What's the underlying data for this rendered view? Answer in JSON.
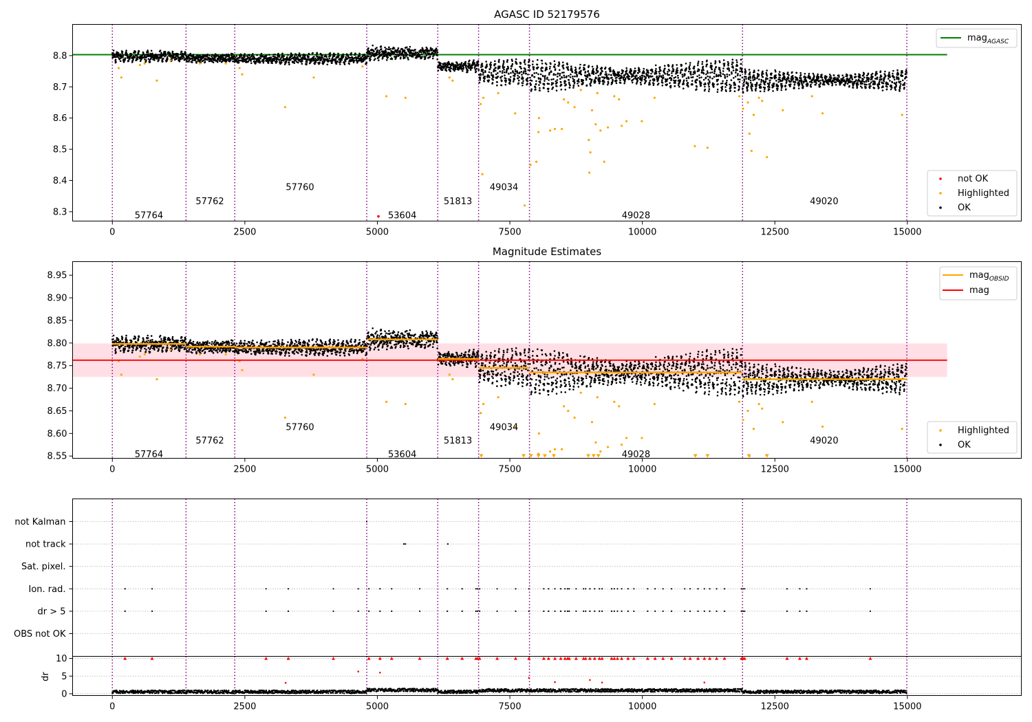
{
  "chart_data": [
    {
      "type": "scatter",
      "title": "AGASC ID 52179576",
      "xlim": [
        -750,
        17150
      ],
      "ylim": [
        8.27,
        8.9
      ],
      "xticks": [
        0,
        2500,
        5000,
        7500,
        10000,
        12500,
        15000
      ],
      "yticks": [
        8.3,
        8.4,
        8.5,
        8.6,
        8.7,
        8.8
      ],
      "ytick_labels": [
        "8.3",
        "8.4",
        "8.5",
        "8.6",
        "8.7",
        "8.8"
      ],
      "mag_agasc": 8.803,
      "line_xrange": [
        -750,
        15750
      ],
      "obs_boundaries": [
        0,
        1390,
        2310,
        4800,
        6140,
        6910,
        7870,
        11890,
        14990
      ],
      "obsid_labels": [
        {
          "text": "57764",
          "x": 690,
          "y": 8.29
        },
        {
          "text": "57762",
          "x": 1840,
          "y": 8.335
        },
        {
          "text": "57760",
          "x": 3540,
          "y": 8.38
        },
        {
          "text": "53604",
          "x": 5470,
          "y": 8.29
        },
        {
          "text": "51813",
          "x": 6520,
          "y": 8.335
        },
        {
          "text": "49034",
          "x": 7390,
          "y": 8.38
        },
        {
          "text": "49028",
          "x": 9880,
          "y": 8.29
        },
        {
          "text": "49020",
          "x": 13430,
          "y": 8.335
        }
      ],
      "segments": [
        {
          "x0": 0,
          "x1": 1390,
          "mean": 8.798,
          "amp": 0.006,
          "spread": 0.012
        },
        {
          "x0": 1390,
          "x1": 2310,
          "mean": 8.792,
          "amp": 0.005,
          "spread": 0.012
        },
        {
          "x0": 2310,
          "x1": 4800,
          "mean": 8.79,
          "amp": 0.005,
          "spread": 0.012
        },
        {
          "x0": 4800,
          "x1": 6140,
          "mean": 8.808,
          "amp": 0.01,
          "spread": 0.016
        },
        {
          "x0": 6140,
          "x1": 6910,
          "mean": 8.765,
          "amp": 0.008,
          "spread": 0.012
        },
        {
          "x0": 6910,
          "x1": 7870,
          "mean": 8.745,
          "amp": 0.02,
          "spread": 0.014
        },
        {
          "x0": 7870,
          "x1": 11890,
          "mean": 8.735,
          "amp": 0.026,
          "spread": 0.014
        },
        {
          "x0": 11890,
          "x1": 14990,
          "mean": 8.72,
          "amp": 0.018,
          "spread": 0.012
        }
      ],
      "highlighted_points": [
        [
          120,
          8.76
        ],
        [
          170,
          8.73
        ],
        [
          520,
          8.77
        ],
        [
          610,
          8.775
        ],
        [
          840,
          8.72
        ],
        [
          1100,
          8.785
        ],
        [
          1650,
          8.775
        ],
        [
          2140,
          8.775
        ],
        [
          2400,
          8.76
        ],
        [
          2450,
          8.74
        ],
        [
          3260,
          8.635
        ],
        [
          3800,
          8.73
        ],
        [
          4720,
          8.765
        ],
        [
          5170,
          8.67
        ],
        [
          5530,
          8.665
        ],
        [
          6360,
          8.73
        ],
        [
          6420,
          8.72
        ],
        [
          6950,
          8.645
        ],
        [
          6980,
          8.42
        ],
        [
          7000,
          8.665
        ],
        [
          7280,
          8.68
        ],
        [
          7600,
          8.615
        ],
        [
          7780,
          8.32
        ],
        [
          7890,
          8.45
        ],
        [
          8000,
          8.46
        ],
        [
          8050,
          8.6
        ],
        [
          8040,
          8.555
        ],
        [
          8260,
          8.56
        ],
        [
          8350,
          8.565
        ],
        [
          8480,
          8.565
        ],
        [
          8520,
          8.66
        ],
        [
          8600,
          8.65
        ],
        [
          8720,
          8.635
        ],
        [
          8840,
          8.69
        ],
        [
          8990,
          8.53
        ],
        [
          9020,
          8.49
        ],
        [
          9000,
          8.425
        ],
        [
          9050,
          8.625
        ],
        [
          9120,
          8.58
        ],
        [
          9150,
          8.68
        ],
        [
          9210,
          8.56
        ],
        [
          9280,
          8.46
        ],
        [
          9350,
          8.57
        ],
        [
          9470,
          8.67
        ],
        [
          9560,
          8.66
        ],
        [
          9610,
          8.575
        ],
        [
          9700,
          8.59
        ],
        [
          9990,
          8.59
        ],
        [
          10230,
          8.665
        ],
        [
          10990,
          8.51
        ],
        [
          11230,
          8.505
        ],
        [
          11830,
          8.67
        ],
        [
          11900,
          8.63
        ],
        [
          11990,
          8.65
        ],
        [
          12020,
          8.55
        ],
        [
          12060,
          8.495
        ],
        [
          12100,
          8.61
        ],
        [
          12200,
          8.665
        ],
        [
          12260,
          8.655
        ],
        [
          12350,
          8.475
        ],
        [
          12650,
          8.625
        ],
        [
          13200,
          8.67
        ],
        [
          13400,
          8.615
        ],
        [
          14900,
          8.61
        ]
      ],
      "not_ok_points": [
        [
          5020,
          8.285
        ]
      ],
      "legend": [
        "mag_AGASC",
        "not OK",
        "Highlighted",
        "OK"
      ]
    },
    {
      "type": "scatter",
      "title": "Magnitude Estimates",
      "xlim": [
        -750,
        17150
      ],
      "ylim": [
        8.545,
        8.98
      ],
      "xticks": [
        0,
        2500,
        5000,
        7500,
        10000,
        12500,
        15000
      ],
      "yticks": [
        8.55,
        8.6,
        8.65,
        8.7,
        8.75,
        8.8,
        8.85,
        8.9,
        8.95
      ],
      "ytick_labels": [
        "8.55",
        "8.60",
        "8.65",
        "8.70",
        "8.75",
        "8.80",
        "8.85",
        "8.90",
        "8.95"
      ],
      "mag": 8.762,
      "mag_band": [
        8.725,
        8.799
      ],
      "line_xrange": [
        -750,
        15750
      ],
      "mag_obsid": [
        8.798,
        8.792,
        8.79,
        8.808,
        8.765,
        8.745,
        8.735,
        8.72
      ],
      "obs_boundaries": [
        0,
        1390,
        2310,
        4800,
        6140,
        6910,
        7870,
        11890,
        14990
      ],
      "obsid_labels": [
        {
          "text": "57764",
          "x": 690,
          "y": 8.555
        },
        {
          "text": "57762",
          "x": 1840,
          "y": 8.585
        },
        {
          "text": "57760",
          "x": 3540,
          "y": 8.615
        },
        {
          "text": "53604",
          "x": 5470,
          "y": 8.555
        },
        {
          "text": "51813",
          "x": 6520,
          "y": 8.585
        },
        {
          "text": "49034",
          "x": 7390,
          "y": 8.615
        },
        {
          "text": "49028",
          "x": 9880,
          "y": 8.555
        },
        {
          "text": "49020",
          "x": 13430,
          "y": 8.585
        }
      ],
      "clipped_points_x": [
        6960,
        7760,
        7900,
        8040,
        8160,
        8330,
        8980,
        9080,
        9170,
        11000,
        11230,
        12010,
        12350
      ],
      "legend": [
        "mag_OBSID",
        "mag",
        "Highlighted",
        "OK"
      ]
    },
    {
      "type": "scatter",
      "xlim": [
        -750,
        17150
      ],
      "xticks": [
        0,
        2500,
        5000,
        7500,
        10000,
        12500,
        15000
      ],
      "flag_rows": [
        "not Kalman",
        "not track",
        "Sat. pixel.",
        "Ion. rad.",
        "dr > 5",
        "OBS not OK"
      ],
      "flag_points": {
        "not Kalman": [
          4800
        ],
        "not track": [
          5500,
          5530,
          6330
        ],
        "Sat. pixel.": [],
        "Ion. rad.": [
          240,
          750,
          2900,
          3320,
          4170,
          4640,
          4840,
          5050,
          5270,
          5800,
          6320,
          6600,
          6860,
          6890,
          6930,
          7260,
          7610,
          7860,
          8140,
          8230,
          8350,
          8460,
          8540,
          8590,
          8620,
          8750,
          8890,
          8930,
          9010,
          9100,
          9190,
          9240,
          9420,
          9470,
          9530,
          9610,
          9730,
          9840,
          10100,
          10240,
          10390,
          10550,
          10800,
          10900,
          11050,
          11170,
          11270,
          11400,
          11550,
          11870,
          11900,
          11930,
          12730,
          12970,
          13100,
          14300
        ],
        "dr > 5": [
          240,
          750,
          2900,
          3320,
          4170,
          4640,
          4840,
          5050,
          5270,
          5800,
          6320,
          6600,
          6860,
          6890,
          6930,
          7260,
          7610,
          7860,
          8140,
          8230,
          8350,
          8460,
          8540,
          8590,
          8620,
          8750,
          8890,
          8930,
          9010,
          9100,
          9190,
          9240,
          9420,
          9470,
          9530,
          9610,
          9730,
          9840,
          10100,
          10240,
          10390,
          10550,
          10800,
          10900,
          11050,
          11170,
          11270,
          11400,
          11550,
          11870,
          11900,
          11930,
          12730,
          12970,
          13100,
          14300
        ],
        "OBS not OK": []
      },
      "obs_boundaries": [
        0,
        1390,
        2310,
        4800,
        6140,
        6910,
        7870,
        11890,
        14990
      ]
    },
    {
      "type": "scatter",
      "ylabel": "dr",
      "xlim": [
        -750,
        17150
      ],
      "ylim": [
        -0.5,
        10.6
      ],
      "xticks": [
        0,
        2500,
        5000,
        7500,
        10000,
        12500,
        15000
      ],
      "yticks": [
        0,
        5,
        10
      ],
      "ytick_labels": [
        "0",
        "5",
        "10"
      ],
      "capped_dr_x": [
        240,
        750,
        2900,
        3320,
        4170,
        4840,
        5050,
        5270,
        5800,
        6320,
        6600,
        6860,
        6890,
        6930,
        7260,
        7610,
        7860,
        8140,
        8230,
        8350,
        8460,
        8540,
        8590,
        8620,
        8750,
        8890,
        8930,
        9010,
        9100,
        9190,
        9240,
        9420,
        9470,
        9530,
        9610,
        9730,
        9840,
        10100,
        10240,
        10390,
        10550,
        10800,
        10900,
        11050,
        11170,
        11270,
        11400,
        11550,
        11870,
        11900,
        11930,
        12730,
        12970,
        13100,
        14300
      ],
      "mid_dr_points": [
        [
          3270,
          3.1
        ],
        [
          4640,
          6.3
        ],
        [
          5050,
          6.0
        ],
        [
          7860,
          4.5
        ],
        [
          8350,
          3.3
        ],
        [
          9010,
          3.9
        ],
        [
          9240,
          3.2
        ],
        [
          11170,
          3.2
        ]
      ],
      "obs_boundaries": [
        0,
        1390,
        2310,
        4800,
        6140,
        6910,
        7870,
        11890,
        14990
      ]
    }
  ]
}
